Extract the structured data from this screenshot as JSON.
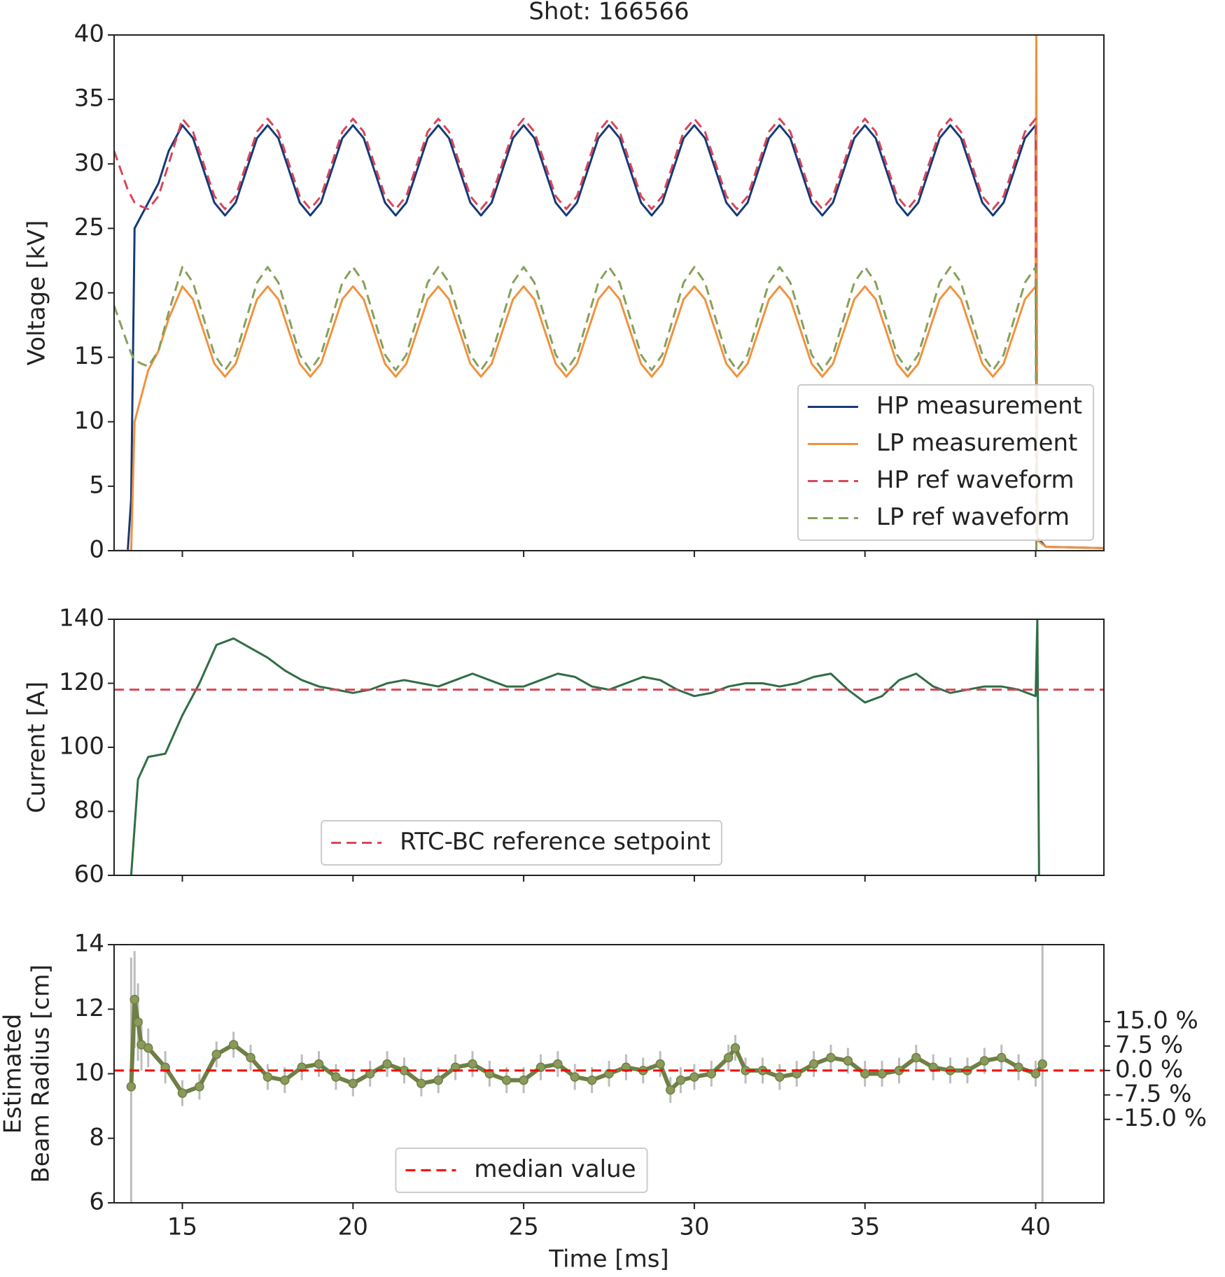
{
  "chart_data": [
    {
      "type": "line",
      "title": "Shot: 166566",
      "ylabel": [
        "Voltage [kV]"
      ],
      "xlim": [
        13,
        42
      ],
      "ylim": [
        0,
        40
      ],
      "xticks": [
        15,
        20,
        25,
        30,
        35,
        40
      ],
      "yticks": [
        0,
        5,
        10,
        15,
        20,
        25,
        30,
        35,
        40
      ],
      "show_xtick_labels": false,
      "legend": "lower right",
      "x": [
        13.0,
        13.4,
        13.5,
        13.6,
        13.8,
        14.0,
        14.3,
        14.6,
        15,
        15.3125,
        15.625,
        15.9375,
        16.25,
        16.5625,
        16.875,
        17.1875,
        17.5,
        17.8125,
        18.125,
        18.4375,
        18.75,
        19.0625,
        19.375,
        19.6875,
        20,
        20.3125,
        20.625,
        20.9375,
        21.25,
        21.5625,
        21.875,
        22.1875,
        22.5,
        22.8125,
        23.125,
        23.4375,
        23.75,
        24.0625,
        24.375,
        24.6875,
        25,
        25.3125,
        25.625,
        25.9375,
        26.25,
        26.5625,
        26.875,
        27.1875,
        27.5,
        27.8125,
        28.125,
        28.4375,
        28.75,
        29.0625,
        29.375,
        29.6875,
        30,
        30.3125,
        30.625,
        30.9375,
        31.25,
        31.5625,
        31.875,
        32.1875,
        32.5,
        32.8125,
        33.125,
        33.4375,
        33.75,
        34.0625,
        34.375,
        34.6875,
        35,
        35.3125,
        35.625,
        35.9375,
        36.25,
        36.5625,
        36.875,
        37.1875,
        37.5,
        37.8125,
        38.125,
        38.4375,
        38.75,
        39.0625,
        39.375,
        39.6875,
        40,
        40.02,
        40.05,
        40.3,
        42.0
      ],
      "series": [
        {
          "name": "HP measurement",
          "color": "#163a78",
          "style": "solid",
          "values": [
            0,
            0,
            4,
            25,
            26,
            27,
            28.5,
            31,
            33,
            32,
            29.5,
            27,
            26,
            27,
            29.5,
            32,
            33,
            32,
            29.5,
            27,
            26,
            27,
            29.5,
            32,
            33,
            32,
            29.5,
            27,
            26,
            27,
            29.5,
            32,
            33,
            32,
            29.5,
            27,
            26,
            27,
            29.5,
            32,
            33,
            32,
            29.5,
            27,
            26,
            27,
            29.5,
            32,
            33,
            32,
            29.5,
            27,
            26,
            27,
            29.5,
            32,
            33,
            32,
            29.5,
            27,
            26,
            27,
            29.5,
            32,
            33,
            32,
            29.5,
            27,
            26,
            27,
            29.5,
            32,
            33,
            32,
            29.5,
            27,
            26,
            27,
            29.5,
            32,
            33,
            32,
            29.5,
            27,
            26,
            27,
            29.5,
            32,
            33,
            15,
            1,
            0.3,
            0.2
          ]
        },
        {
          "name": "LP measurement",
          "color": "#f0923f",
          "style": "solid",
          "values": [
            0,
            0,
            0,
            10,
            12,
            14,
            15.5,
            18,
            20.5,
            19.5,
            17,
            14.5,
            13.5,
            14.5,
            17,
            19.5,
            20.5,
            19.5,
            17,
            14.5,
            13.5,
            14.5,
            17,
            19.5,
            20.5,
            19.5,
            17,
            14.5,
            13.5,
            14.5,
            17,
            19.5,
            20.5,
            19.5,
            17,
            14.5,
            13.5,
            14.5,
            17,
            19.5,
            20.5,
            19.5,
            17,
            14.5,
            13.5,
            14.5,
            17,
            19.5,
            20.5,
            19.5,
            17,
            14.5,
            13.5,
            14.5,
            17,
            19.5,
            20.5,
            19.5,
            17,
            14.5,
            13.5,
            14.5,
            17,
            19.5,
            20.5,
            19.5,
            17,
            14.5,
            13.5,
            14.5,
            17,
            19.5,
            20.5,
            19.5,
            17,
            14.5,
            13.5,
            14.5,
            17,
            19.5,
            20.5,
            19.5,
            17,
            14.5,
            13.5,
            14.5,
            17,
            19.5,
            20.5,
            40,
            0.8,
            0.3,
            0.2
          ]
        },
        {
          "name": "HP ref waveform",
          "color": "#d9465a",
          "style": "dashed",
          "values": [
            31,
            28,
            27.5,
            27,
            26.7,
            26.5,
            27.5,
            30,
            33.5,
            32.5,
            30,
            27.5,
            26.5,
            27.5,
            30,
            32.5,
            33.5,
            32.5,
            30,
            27.5,
            26.5,
            27.5,
            30,
            32.5,
            33.5,
            32.5,
            30,
            27.5,
            26.5,
            27.5,
            30,
            32.5,
            33.5,
            32.5,
            30,
            27.5,
            26.5,
            27.5,
            30,
            32.5,
            33.5,
            32.5,
            30,
            27.5,
            26.5,
            27.5,
            30,
            32.5,
            33.5,
            32.5,
            30,
            27.5,
            26.5,
            27.5,
            30,
            32.5,
            33.5,
            32.5,
            30,
            27.5,
            26.5,
            27.5,
            30,
            32.5,
            33.5,
            32.5,
            30,
            27.5,
            26.5,
            27.5,
            30,
            32.5,
            33.5,
            32.5,
            30,
            27.5,
            26.5,
            27.5,
            30,
            32.5,
            33.5,
            32.5,
            30,
            27.5,
            26.5,
            27.5,
            30,
            32.5,
            33.5,
            0,
            null,
            null,
            null
          ]
        },
        {
          "name": "LP ref waveform",
          "color": "#86a05a",
          "style": "dashed",
          "values": [
            19,
            16,
            15.3,
            14.8,
            14.5,
            14.3,
            15.5,
            18.5,
            22,
            20.8,
            18,
            15.2,
            14,
            15.2,
            18,
            20.8,
            22,
            20.8,
            18,
            15.2,
            14,
            15.2,
            18,
            20.8,
            22,
            20.8,
            18,
            15.2,
            14,
            15.2,
            18,
            20.8,
            22,
            20.8,
            18,
            15.2,
            14,
            15.2,
            18,
            20.8,
            22,
            20.8,
            18,
            15.2,
            14,
            15.2,
            18,
            20.8,
            22,
            20.8,
            18,
            15.2,
            14,
            15.2,
            18,
            20.8,
            22,
            20.8,
            18,
            15.2,
            14,
            15.2,
            18,
            20.8,
            22,
            20.8,
            18,
            15.2,
            14,
            15.2,
            18,
            20.8,
            22,
            20.8,
            18,
            15.2,
            14,
            15.2,
            18,
            20.8,
            22,
            20.8,
            18,
            15.2,
            14,
            15.2,
            18,
            20.8,
            22,
            0,
            null,
            null,
            null
          ]
        }
      ]
    },
    {
      "type": "line",
      "ylabel": [
        "Current [A]"
      ],
      "xlim": [
        13,
        42
      ],
      "ylim": [
        60,
        140
      ],
      "xticks": [
        15,
        20,
        25,
        30,
        35,
        40
      ],
      "yticks": [
        60,
        80,
        100,
        120,
        140
      ],
      "show_xtick_labels": false,
      "legend": "lower center",
      "x": [
        13.5,
        13.7,
        14,
        14.5,
        15,
        15.5,
        16,
        16.5,
        17,
        17.5,
        18,
        18.5,
        19,
        19.5,
        20,
        20.5,
        21,
        21.5,
        22,
        22.5,
        23,
        23.5,
        24,
        24.5,
        25,
        25.5,
        26,
        26.5,
        27,
        27.5,
        28,
        28.5,
        29,
        29.5,
        30,
        30.5,
        31,
        31.5,
        32,
        32.5,
        33,
        33.5,
        34,
        34.5,
        35,
        35.5,
        36,
        36.5,
        37,
        37.5,
        38,
        38.5,
        39,
        39.5,
        40,
        40.05,
        40.1
      ],
      "series": [
        {
          "color": "#2f6e45",
          "style": "solid",
          "values": [
            60,
            90,
            97,
            98,
            110,
            120,
            132,
            134,
            131,
            128,
            124,
            121,
            119,
            118,
            117,
            118,
            120,
            121,
            120,
            119,
            121,
            123,
            121,
            119,
            119,
            121,
            123,
            122,
            119,
            118,
            120,
            122,
            121,
            118,
            116,
            117,
            119,
            120,
            120,
            119,
            120,
            122,
            123,
            118,
            114,
            116,
            121,
            123,
            119,
            117,
            118,
            119,
            119,
            118,
            116,
            140,
            60
          ]
        }
      ],
      "hlines": [
        {
          "name": "RTC-BC reference setpoint",
          "value": 118,
          "color": "#d9465a",
          "style": "dashed"
        }
      ]
    },
    {
      "type": "line",
      "ylabel": [
        "Estimated",
        "Beam Radius [cm]"
      ],
      "xlabel": "Time [ms]",
      "xlim": [
        13,
        42
      ],
      "ylim": [
        6,
        14
      ],
      "xticks": [
        15,
        20,
        25,
        30,
        35,
        40
      ],
      "yticks": [
        6,
        8,
        10,
        12,
        14
      ],
      "y2lim": [
        -40.6,
        38.6
      ],
      "y2ticks": [
        {
          "value": 15,
          "label": "15.0 %"
        },
        {
          "value": 7.5,
          "label": "7.5 %"
        },
        {
          "value": 0,
          "label": "0.0 %"
        },
        {
          "value": -7.5,
          "label": "-7.5 %"
        },
        {
          "value": -15,
          "label": "-15.0 %"
        }
      ],
      "show_xtick_labels": true,
      "legend": "lower center",
      "x": [
        13.5,
        13.6,
        13.7,
        13.8,
        14,
        14.5,
        15,
        15.5,
        16,
        16.5,
        17,
        17.5,
        18,
        18.5,
        19,
        19.5,
        20,
        20.5,
        21,
        21.5,
        22,
        22.5,
        23,
        23.5,
        24,
        24.5,
        25,
        25.5,
        26,
        26.5,
        27,
        27.5,
        28,
        28.5,
        29,
        29.3,
        29.6,
        30,
        30.5,
        31,
        31.2,
        31.5,
        32,
        32.5,
        33,
        33.5,
        34,
        34.5,
        35,
        35.5,
        36,
        36.5,
        37,
        37.5,
        38,
        38.5,
        39,
        39.5,
        40,
        40.2
      ],
      "series": [
        {
          "color": "#6f7f45",
          "marker_color": "#8a9a5b",
          "style": "solid",
          "markers": true,
          "values": [
            9.6,
            12.3,
            11.6,
            10.9,
            10.8,
            10.2,
            9.4,
            9.6,
            10.6,
            10.9,
            10.5,
            9.9,
            9.8,
            10.2,
            10.3,
            9.9,
            9.7,
            10.0,
            10.3,
            10.1,
            9.7,
            9.8,
            10.2,
            10.3,
            10.0,
            9.8,
            9.8,
            10.2,
            10.3,
            9.9,
            9.8,
            10.0,
            10.2,
            10.1,
            10.3,
            9.5,
            9.8,
            9.9,
            10.0,
            10.5,
            10.8,
            10.1,
            10.1,
            9.9,
            10.0,
            10.3,
            10.5,
            10.4,
            10.0,
            10.0,
            10.1,
            10.5,
            10.2,
            10.1,
            10.1,
            10.4,
            10.5,
            10.2,
            10.0,
            10.3
          ],
          "errors": [
            4,
            1.5,
            1.2,
            0.8,
            0.6,
            0.5,
            0.4,
            0.4,
            0.4,
            0.4,
            0.4,
            0.4,
            0.4,
            0.4,
            0.4,
            0.4,
            0.4,
            0.4,
            0.4,
            0.4,
            0.4,
            0.4,
            0.4,
            0.4,
            0.4,
            0.4,
            0.4,
            0.4,
            0.4,
            0.4,
            0.4,
            0.4,
            0.4,
            0.4,
            0.4,
            0.4,
            0.4,
            0.4,
            0.4,
            0.4,
            0.4,
            0.4,
            0.4,
            0.4,
            0.4,
            0.4,
            0.4,
            0.4,
            0.4,
            0.4,
            0.4,
            0.4,
            0.4,
            0.4,
            0.4,
            0.4,
            0.4,
            0.4,
            0.4,
            8
          ]
        }
      ],
      "hlines": [
        {
          "name": "median value",
          "value": 10.1,
          "color": "#ff0000",
          "style": "dashed"
        }
      ]
    }
  ]
}
